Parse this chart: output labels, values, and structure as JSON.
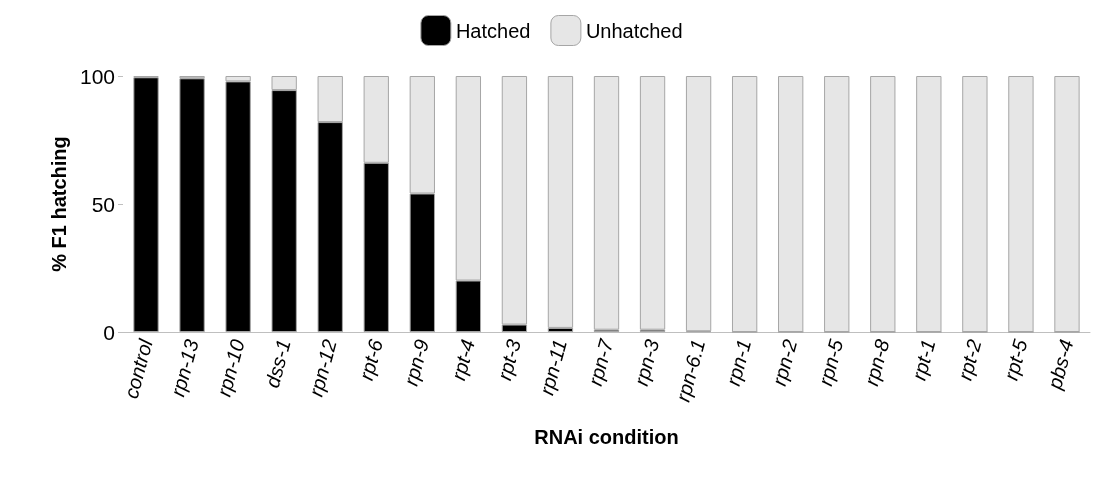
{
  "chart_data": {
    "type": "bar",
    "stacked": true,
    "xlabel": "RNAi condition",
    "ylabel": "% F1 hatching",
    "categories": [
      "control",
      "rpn-13",
      "rpn-10",
      "dss-1",
      "rpn-12",
      "rpt-6",
      "rpn-9",
      "rpt-4",
      "rpt-3",
      "rpn-11",
      "rpn-7",
      "rpn-3",
      "rpn-6.1",
      "rpn-1",
      "rpn-2",
      "rpn-5",
      "rpn-8",
      "rpt-1",
      "rpt-2",
      "rpt-5",
      "pbs-4"
    ],
    "series": [
      {
        "name": "Hatched",
        "color": "#000000",
        "values": [
          99.5,
          99.1,
          97.9,
          94.5,
          82,
          66.1,
          54.1,
          20.1,
          2.9,
          1.6,
          0.9,
          0.9,
          0.3,
          0,
          0,
          0,
          0,
          0,
          0,
          0,
          0
        ]
      },
      {
        "name": "Unhatched",
        "color": "#e6e6e6",
        "values": [
          0.5,
          0.9,
          2.1,
          5.5,
          18,
          33.9,
          45.9,
          79.9,
          97.1,
          98.4,
          99.1,
          99.1,
          99.7,
          100,
          100,
          100,
          100,
          100,
          100,
          100,
          100
        ]
      }
    ],
    "ylim": [
      0,
      100
    ],
    "yticks": [
      0,
      50,
      100
    ],
    "grid": false,
    "legend": "top"
  }
}
